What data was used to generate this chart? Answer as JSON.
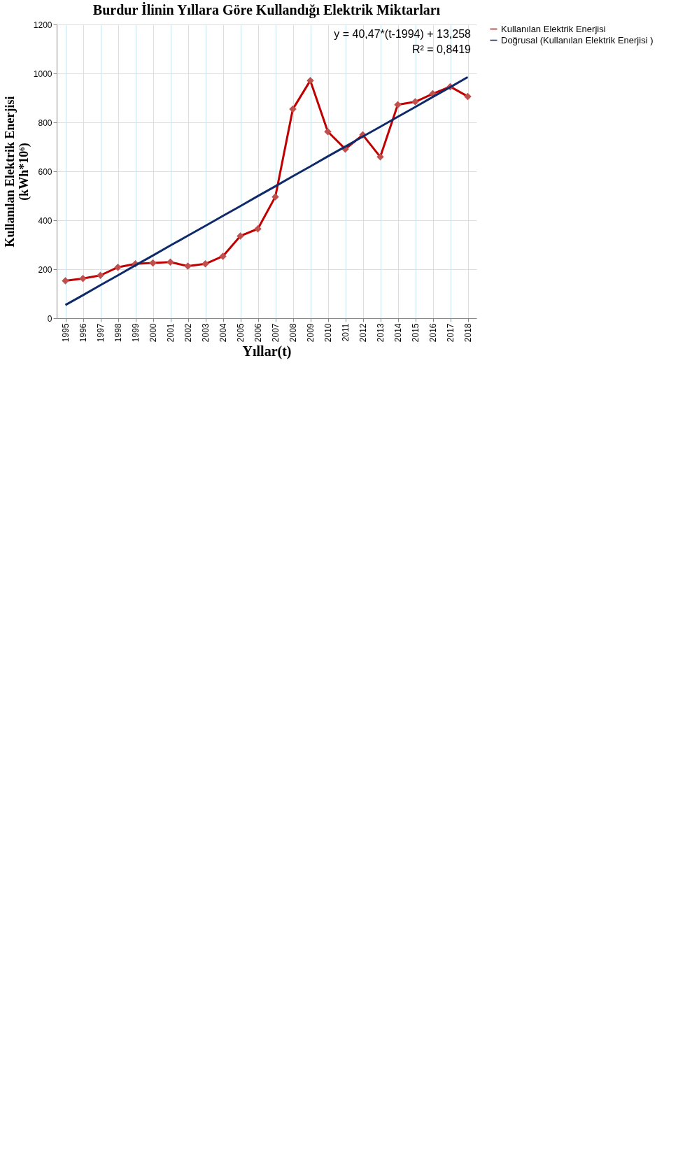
{
  "chart_data": {
    "type": "line",
    "title": "Burdur İlinin Yıllara Göre Kullandığı Elektrik Miktarları",
    "xlabel": "Yıllar(t)",
    "ylabel": "Kullanılan Elektrik Enerjisi\n(kWh*10⁶)",
    "categories": [
      "1995",
      "1996",
      "1997",
      "1998",
      "1999",
      "2000",
      "2001",
      "2002",
      "2003",
      "2004",
      "2005",
      "2006",
      "2007",
      "2008",
      "2009",
      "2010",
      "2011",
      "2012",
      "2013",
      "2014",
      "2015",
      "2016",
      "2017",
      "2018"
    ],
    "series": [
      {
        "name": "Kullanılan Elektrik Enerjisi",
        "color": "#c00000",
        "marker": "diamond",
        "values": [
          153,
          162,
          175,
          208,
          222,
          226,
          229,
          213,
          222,
          253,
          336,
          365,
          496,
          854,
          971,
          762,
          691,
          749,
          659,
          872,
          884,
          917,
          946,
          906
        ]
      },
      {
        "name": "Doğrusal (Kullanılan Elektrik Enerjisi )",
        "color": "#0e2a6b",
        "marker": "none",
        "values": [
          54,
          94,
          135,
          175,
          216,
          256,
          297,
          337,
          377,
          418,
          458,
          499,
          539,
          580,
          620,
          661,
          701,
          742,
          782,
          823,
          863,
          904,
          944,
          985
        ]
      }
    ],
    "ylim": [
      0,
      1200
    ],
    "yticks": [
      0,
      200,
      400,
      600,
      800,
      1000,
      1200
    ],
    "grid": true,
    "legend": "right",
    "annotations": [
      "y = 40,47*(t-1994) + 13,258",
      "R² = 0,8419"
    ]
  }
}
